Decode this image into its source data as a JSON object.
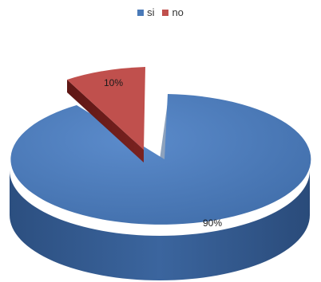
{
  "chart_data": {
    "type": "pie",
    "style": "3d-exploded",
    "legend_position": "top",
    "categories": [
      "si",
      "no"
    ],
    "values": [
      90,
      10
    ],
    "data_labels": [
      "90%",
      "10%"
    ],
    "colors": [
      "#4a7ab8",
      "#c0504d"
    ]
  }
}
